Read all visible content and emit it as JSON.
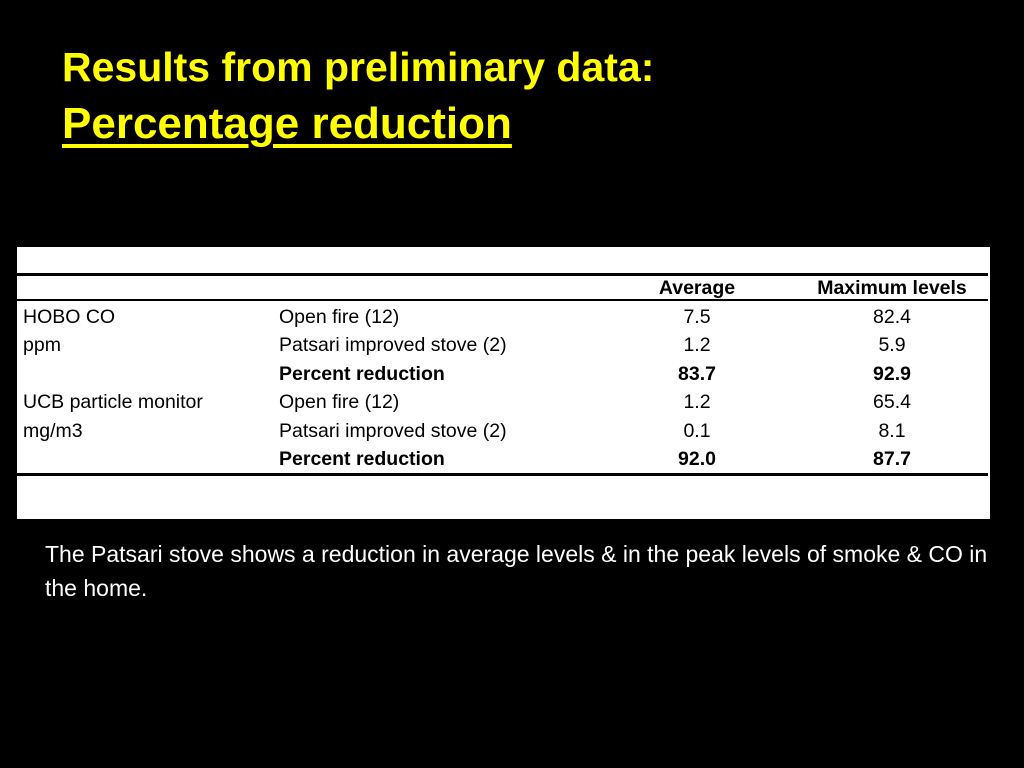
{
  "slide": {
    "title_line1": "Results from preliminary data:",
    "title_line2": "Percentage reduction",
    "caption": "The Patsari stove shows a reduction in average levels & in the peak levels of smoke & CO in the home."
  },
  "table": {
    "headers": [
      "",
      "",
      "Average",
      "Maximum levels"
    ],
    "rows": [
      {
        "c1": "HOBO CO",
        "c2": "Open fire (12)",
        "c3": "7.5",
        "c4": "82.4"
      },
      {
        "c1": "ppm",
        "c2": "Patsari improved stove (2)",
        "c3": "1.2",
        "c4": "5.9"
      },
      {
        "c1": "",
        "c2": "Percent reduction",
        "c3": "83.7",
        "c4": "92.9"
      },
      {
        "c1": "UCB particle monitor",
        "c2": "Open fire (12)",
        "c3": "1.2",
        "c4": "65.4"
      },
      {
        "c1": "mg/m3",
        "c2": "Patsari improved stove (2)",
        "c3": "0.1",
        "c4": "8.1"
      },
      {
        "c1": "",
        "c2": "Percent reduction",
        "c3": "92.0",
        "c4": "87.7"
      }
    ]
  },
  "colors": {
    "background": "#000000",
    "title": "#ffff00",
    "caption": "#ffffff",
    "table_bg": "#ffffff"
  }
}
